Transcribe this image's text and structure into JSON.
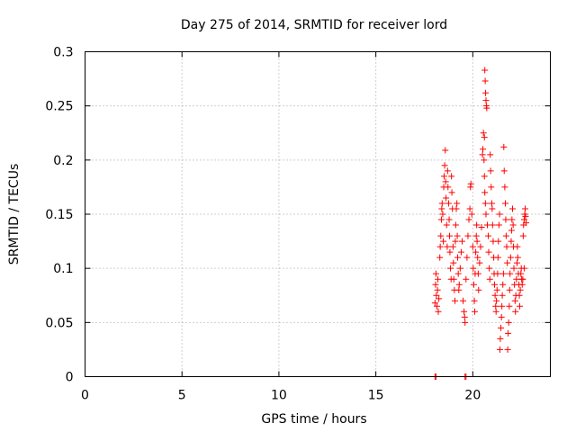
{
  "chart_data": {
    "type": "scatter",
    "title": "Day 275 of 2014, SRMTID for receiver lord",
    "xlabel": "GPS time / hours",
    "ylabel": "SRMTID / TECUs",
    "xlim": [
      0,
      24
    ],
    "ylim": [
      0,
      0.3
    ],
    "xticks": [
      0,
      5,
      10,
      15,
      20
    ],
    "yticks": [
      0,
      0.05,
      0.1,
      0.15,
      0.2,
      0.25,
      0.3
    ],
    "xtick_labels": [
      "0",
      "5",
      "10",
      "15",
      "20"
    ],
    "ytick_labels": [
      "0",
      "0.05",
      "0.1",
      "0.15",
      "0.2",
      "0.25",
      "0.3"
    ],
    "grid": true,
    "marker": "+",
    "color": "#ff0000",
    "series": [
      {
        "name": "SRMTID",
        "points": [
          [
            18.05,
            0.0
          ],
          [
            18.1,
            0.0
          ],
          [
            19.6,
            0.0
          ],
          [
            19.65,
            0.0
          ],
          [
            18.05,
            0.068
          ],
          [
            18.08,
            0.085
          ],
          [
            18.1,
            0.095
          ],
          [
            18.12,
            0.075
          ],
          [
            18.15,
            0.065
          ],
          [
            18.18,
            0.08
          ],
          [
            18.2,
            0.09
          ],
          [
            18.22,
            0.06
          ],
          [
            18.25,
            0.072
          ],
          [
            18.3,
            0.11
          ],
          [
            18.32,
            0.12
          ],
          [
            18.35,
            0.13
          ],
          [
            18.38,
            0.145
          ],
          [
            18.4,
            0.155
          ],
          [
            18.42,
            0.16
          ],
          [
            18.45,
            0.15
          ],
          [
            18.48,
            0.125
          ],
          [
            18.5,
            0.175
          ],
          [
            18.52,
            0.185
          ],
          [
            18.55,
            0.195
          ],
          [
            18.58,
            0.209
          ],
          [
            18.6,
            0.18
          ],
          [
            18.62,
            0.165
          ],
          [
            18.65,
            0.14
          ],
          [
            18.68,
            0.12
          ],
          [
            18.7,
            0.19
          ],
          [
            18.72,
            0.175
          ],
          [
            18.75,
            0.16
          ],
          [
            18.78,
            0.145
          ],
          [
            18.8,
            0.13
          ],
          [
            18.82,
            0.115
          ],
          [
            18.85,
            0.1
          ],
          [
            18.88,
            0.09
          ],
          [
            18.9,
            0.185
          ],
          [
            18.92,
            0.17
          ],
          [
            18.95,
            0.155
          ],
          [
            18.98,
            0.12
          ],
          [
            19.0,
            0.105
          ],
          [
            19.02,
            0.09
          ],
          [
            19.05,
            0.08
          ],
          [
            19.08,
            0.07
          ],
          [
            19.1,
            0.125
          ],
          [
            19.12,
            0.14
          ],
          [
            19.15,
            0.155
          ],
          [
            19.18,
            0.16
          ],
          [
            19.2,
            0.13
          ],
          [
            19.22,
            0.11
          ],
          [
            19.25,
            0.095
          ],
          [
            19.28,
            0.08
          ],
          [
            19.3,
            0.085
          ],
          [
            19.35,
            0.1
          ],
          [
            19.4,
            0.115
          ],
          [
            19.45,
            0.125
          ],
          [
            19.5,
            0.07
          ],
          [
            19.55,
            0.06
          ],
          [
            19.58,
            0.055
          ],
          [
            19.6,
            0.05
          ],
          [
            19.65,
            0.09
          ],
          [
            19.7,
            0.11
          ],
          [
            19.75,
            0.13
          ],
          [
            19.8,
            0.145
          ],
          [
            19.85,
            0.155
          ],
          [
            19.88,
            0.175
          ],
          [
            19.9,
            0.178
          ],
          [
            19.95,
            0.15
          ],
          [
            20.0,
            0.12
          ],
          [
            20.02,
            0.1
          ],
          [
            20.05,
            0.085
          ],
          [
            20.08,
            0.07
          ],
          [
            20.1,
            0.06
          ],
          [
            20.12,
            0.095
          ],
          [
            20.15,
            0.115
          ],
          [
            20.18,
            0.13
          ],
          [
            20.2,
            0.14
          ],
          [
            20.22,
            0.125
          ],
          [
            20.25,
            0.11
          ],
          [
            20.28,
            0.095
          ],
          [
            20.3,
            0.08
          ],
          [
            20.35,
            0.105
          ],
          [
            20.4,
            0.12
          ],
          [
            20.45,
            0.138
          ],
          [
            20.5,
            0.205
          ],
          [
            20.52,
            0.21
          ],
          [
            20.55,
            0.225
          ],
          [
            20.58,
            0.2
          ],
          [
            20.6,
            0.185
          ],
          [
            20.62,
            0.17
          ],
          [
            20.65,
            0.16
          ],
          [
            20.68,
            0.15
          ],
          [
            20.62,
            0.283
          ],
          [
            20.64,
            0.273
          ],
          [
            20.66,
            0.262
          ],
          [
            20.68,
            0.255
          ],
          [
            20.7,
            0.25
          ],
          [
            20.72,
            0.248
          ],
          [
            20.6,
            0.221
          ],
          [
            20.75,
            0.14
          ],
          [
            20.8,
            0.13
          ],
          [
            20.82,
            0.115
          ],
          [
            20.85,
            0.1
          ],
          [
            20.88,
            0.09
          ],
          [
            20.9,
            0.205
          ],
          [
            20.92,
            0.19
          ],
          [
            20.95,
            0.175
          ],
          [
            20.98,
            0.16
          ],
          [
            21.0,
            0.155
          ],
          [
            21.02,
            0.14
          ],
          [
            21.05,
            0.125
          ],
          [
            21.08,
            0.11
          ],
          [
            21.1,
            0.095
          ],
          [
            21.12,
            0.085
          ],
          [
            21.15,
            0.075
          ],
          [
            21.18,
            0.065
          ],
          [
            21.2,
            0.06
          ],
          [
            21.22,
            0.07
          ],
          [
            21.25,
            0.08
          ],
          [
            21.28,
            0.095
          ],
          [
            21.3,
            0.11
          ],
          [
            21.32,
            0.125
          ],
          [
            21.35,
            0.14
          ],
          [
            21.38,
            0.15
          ],
          [
            21.4,
            0.025
          ],
          [
            21.42,
            0.035
          ],
          [
            21.45,
            0.045
          ],
          [
            21.48,
            0.055
          ],
          [
            21.5,
            0.065
          ],
          [
            21.52,
            0.075
          ],
          [
            21.55,
            0.085
          ],
          [
            21.58,
            0.095
          ],
          [
            21.6,
            0.212
          ],
          [
            21.62,
            0.19
          ],
          [
            21.65,
            0.175
          ],
          [
            21.68,
            0.16
          ],
          [
            21.7,
            0.145
          ],
          [
            21.72,
            0.13
          ],
          [
            21.75,
            0.12
          ],
          [
            21.78,
            0.105
          ],
          [
            21.8,
            0.025
          ],
          [
            21.82,
            0.04
          ],
          [
            21.85,
            0.05
          ],
          [
            21.88,
            0.065
          ],
          [
            21.9,
            0.08
          ],
          [
            21.92,
            0.095
          ],
          [
            21.95,
            0.11
          ],
          [
            21.98,
            0.125
          ],
          [
            22.0,
            0.135
          ],
          [
            22.02,
            0.145
          ],
          [
            22.05,
            0.155
          ],
          [
            22.08,
            0.14
          ],
          [
            22.1,
            0.12
          ],
          [
            22.12,
            0.1
          ],
          [
            22.15,
            0.085
          ],
          [
            22.18,
            0.07
          ],
          [
            22.2,
            0.06
          ],
          [
            22.22,
            0.075
          ],
          [
            22.25,
            0.09
          ],
          [
            22.28,
            0.105
          ],
          [
            22.3,
            0.12
          ],
          [
            22.32,
            0.11
          ],
          [
            22.35,
            0.095
          ],
          [
            22.38,
            0.085
          ],
          [
            22.4,
            0.075
          ],
          [
            22.42,
            0.065
          ],
          [
            22.45,
            0.08
          ],
          [
            22.48,
            0.095
          ],
          [
            22.5,
            0.1
          ],
          [
            22.52,
            0.09
          ],
          [
            22.55,
            0.085
          ],
          [
            22.58,
            0.09
          ],
          [
            22.6,
            0.13
          ],
          [
            22.62,
            0.14
          ],
          [
            22.65,
            0.145
          ],
          [
            22.68,
            0.15
          ],
          [
            22.7,
            0.155
          ],
          [
            22.72,
            0.148
          ],
          [
            22.75,
            0.142
          ],
          [
            22.65,
            0.1
          ]
        ]
      }
    ]
  }
}
